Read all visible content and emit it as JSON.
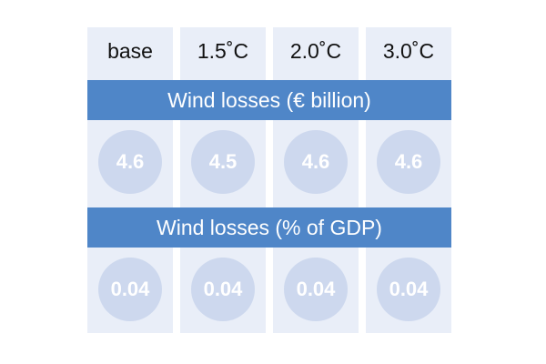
{
  "columns": [
    "base",
    "1.5˚C",
    "2.0˚C",
    "3.0˚C"
  ],
  "sections": [
    {
      "title": "Wind losses (€ billion)",
      "values": [
        "4.6",
        "4.5",
        "4.6",
        "4.6"
      ]
    },
    {
      "title": "Wind losses (% of GDP)",
      "values": [
        "0.04",
        "0.04",
        "0.04",
        "0.04"
      ]
    }
  ]
}
